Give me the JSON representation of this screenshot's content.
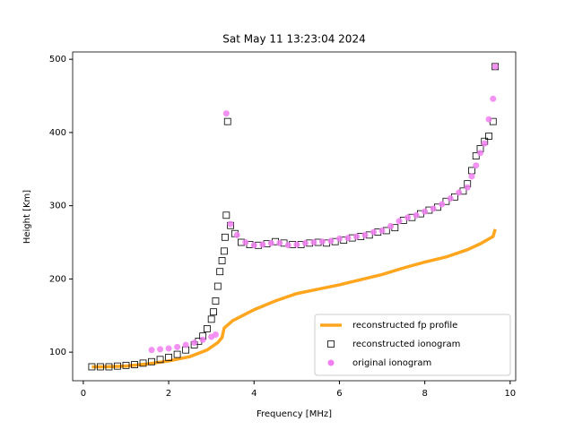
{
  "chart_data": {
    "type": "scatter",
    "title": "Sat May 11 13:23:04 2024",
    "x_label": "Frequency [MHz]",
    "y_label": "Height [Km]",
    "xlim": [
      -0.25,
      10.13
    ],
    "ylim": [
      61,
      510
    ],
    "xticks": [
      0,
      2,
      4,
      6,
      8,
      10
    ],
    "yticks": [
      100,
      200,
      300,
      400,
      500
    ],
    "grid": false,
    "legend": "lower right",
    "series": [
      {
        "name": "reconstructed fp profile",
        "style": "line",
        "color": "#ffa51e",
        "x": [
          0.2,
          0.5,
          1.0,
          1.5,
          2.0,
          2.5,
          2.9,
          3.15,
          3.25,
          3.3,
          3.5,
          4.0,
          4.5,
          5.0,
          5.5,
          6.0,
          6.5,
          7.0,
          7.5,
          8.0,
          8.5,
          9.0,
          9.3,
          9.6,
          9.65
        ],
        "values": [
          80,
          80,
          81,
          84,
          88,
          94,
          103,
          113,
          120,
          133,
          143,
          158,
          170,
          180,
          186,
          192,
          199,
          206,
          215,
          223,
          230,
          240,
          248,
          258,
          268
        ]
      },
      {
        "name": "reconstructed ionogram",
        "style": "square",
        "color": "#000000",
        "x": [
          0.2,
          0.4,
          0.6,
          0.8,
          1.0,
          1.2,
          1.4,
          1.6,
          1.8,
          2.0,
          2.2,
          2.4,
          2.6,
          2.7,
          2.8,
          2.9,
          3.0,
          3.05,
          3.1,
          3.15,
          3.2,
          3.25,
          3.3,
          3.32,
          3.35,
          3.38,
          3.45,
          3.55,
          3.7,
          3.9,
          4.1,
          4.3,
          4.5,
          4.7,
          4.9,
          5.1,
          5.3,
          5.5,
          5.7,
          5.9,
          6.1,
          6.3,
          6.5,
          6.7,
          6.9,
          7.1,
          7.3,
          7.5,
          7.7,
          7.9,
          8.1,
          8.3,
          8.5,
          8.7,
          8.9,
          9.0,
          9.1,
          9.2,
          9.3,
          9.4,
          9.5,
          9.6,
          9.65
        ],
        "values": [
          80,
          80,
          80,
          81,
          82,
          83,
          85,
          87,
          90,
          93,
          97,
          103,
          110,
          115,
          122,
          132,
          145,
          155,
          170,
          190,
          210,
          225,
          238,
          257,
          287,
          415,
          273,
          262,
          250,
          247,
          246,
          248,
          251,
          249,
          247,
          247,
          249,
          250,
          249,
          251,
          253,
          256,
          258,
          260,
          264,
          266,
          270,
          280,
          284,
          289,
          294,
          298,
          306,
          312,
          320,
          330,
          348,
          368,
          378,
          388,
          395,
          415,
          490
        ]
      },
      {
        "name": "original ionogram",
        "style": "circle",
        "color": "#f27ff2",
        "x": [
          1.6,
          1.8,
          2.0,
          2.2,
          2.4,
          2.6,
          2.8,
          3.0,
          3.1,
          3.35,
          3.45,
          3.6,
          3.8,
          4.0,
          4.2,
          4.4,
          4.6,
          4.8,
          5.0,
          5.2,
          5.4,
          5.6,
          5.8,
          6.0,
          6.2,
          6.4,
          6.6,
          6.8,
          7.0,
          7.2,
          7.4,
          7.6,
          7.8,
          8.0,
          8.2,
          8.4,
          8.6,
          8.8,
          9.0,
          9.1,
          9.2,
          9.3,
          9.4,
          9.5,
          9.6,
          9.65
        ],
        "values": [
          103,
          104,
          105,
          107,
          110,
          113,
          117,
          121,
          124,
          426,
          275,
          260,
          250,
          246,
          247,
          249,
          249,
          246,
          247,
          249,
          250,
          251,
          252,
          255,
          256,
          258,
          260,
          264,
          266,
          272,
          279,
          284,
          287,
          292,
          296,
          302,
          310,
          318,
          325,
          340,
          355,
          372,
          385,
          418,
          446,
          490
        ]
      }
    ]
  }
}
